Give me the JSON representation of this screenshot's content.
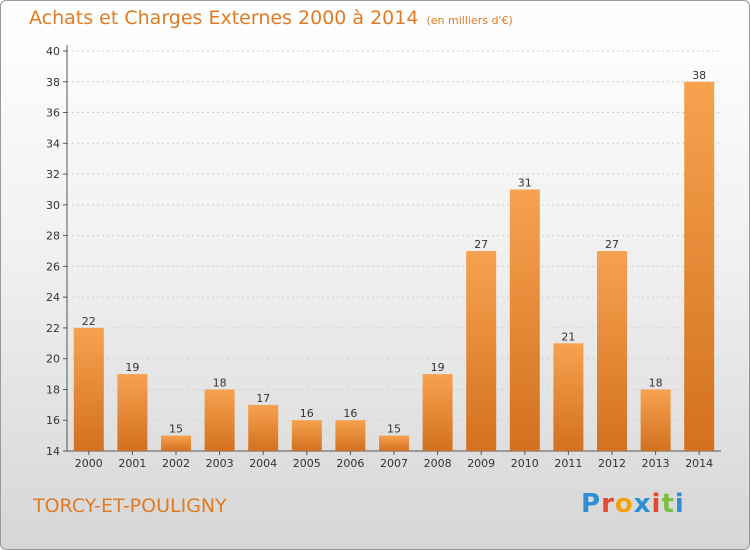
{
  "header": {
    "title": "Achats et Charges Externes 2000 à 2014",
    "subtitle": "(en milliers d'€)"
  },
  "footer": {
    "commune": "TORCY-ET-POULIGNY",
    "logo_letters": [
      "P",
      "r",
      "o",
      "x",
      "i",
      "t",
      "i"
    ],
    "logo_colors": [
      "#2e8fd6",
      "#e64a2e",
      "#f2a20f",
      "#2e8fd6",
      "#e64a2e",
      "#7bc043",
      "#2e8fd6"
    ]
  },
  "chart_data": {
    "type": "bar",
    "title": "Achats et Charges Externes 2000 à 2014",
    "subtitle": "(en milliers d'€)",
    "categories": [
      "2000",
      "2001",
      "2002",
      "2003",
      "2004",
      "2005",
      "2006",
      "2007",
      "2008",
      "2009",
      "2010",
      "2011",
      "2012",
      "2013",
      "2014"
    ],
    "values": [
      22,
      19,
      15,
      18,
      17,
      16,
      16,
      15,
      19,
      27,
      31,
      21,
      27,
      18,
      38
    ],
    "ylim": [
      14,
      40
    ],
    "yticks": [
      14,
      16,
      18,
      20,
      22,
      24,
      26,
      28,
      30,
      32,
      34,
      36,
      38,
      40
    ],
    "xlabel": "",
    "ylabel": "",
    "grid": true,
    "bar_color_light": "#f7a24f",
    "bar_color_dark": "#d2711f",
    "text_color": "#e07b23"
  }
}
